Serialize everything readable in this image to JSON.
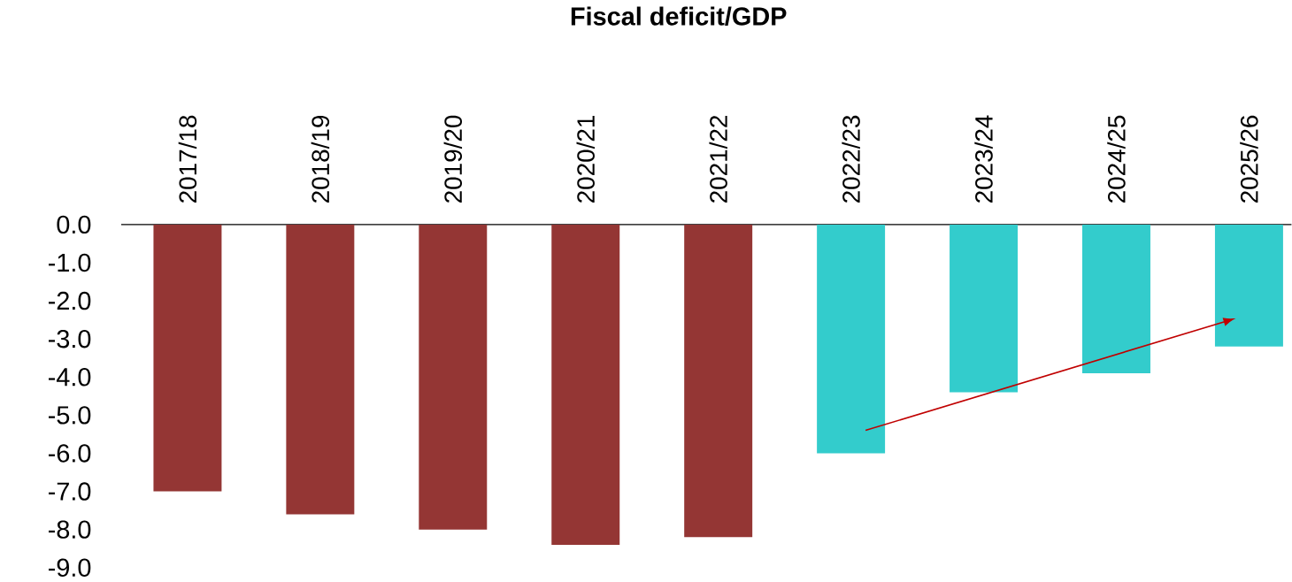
{
  "chart_data": {
    "type": "bar",
    "title": "Fiscal deficit/GDP",
    "categories": [
      "2017/18",
      "2018/19",
      "2019/20",
      "2020/21",
      "2021/22",
      "2022/23",
      "2023/24",
      "2024/25",
      "2025/26"
    ],
    "values": [
      -7.0,
      -7.6,
      -8.0,
      -8.4,
      -8.2,
      -6.0,
      -4.4,
      -3.9,
      -3.2
    ],
    "colors": [
      "#943634",
      "#943634",
      "#943634",
      "#943634",
      "#943634",
      "#33cccc",
      "#33cccc",
      "#33cccc",
      "#33cccc"
    ],
    "ylim": [
      -9,
      0
    ],
    "yticks": [
      {
        "value": 0,
        "label": "0.0"
      },
      {
        "value": -1,
        "label": "-1.0"
      },
      {
        "value": -2,
        "label": "-2.0"
      },
      {
        "value": -3,
        "label": "-3.0"
      },
      {
        "value": -4,
        "label": "-4.0"
      },
      {
        "value": -5,
        "label": "-5.0"
      },
      {
        "value": -6,
        "label": "-6.0"
      },
      {
        "value": -7,
        "label": "-7.0"
      },
      {
        "value": -8,
        "label": "-8.0"
      },
      {
        "value": -9,
        "label": "-9.0"
      }
    ],
    "grid": false
  }
}
